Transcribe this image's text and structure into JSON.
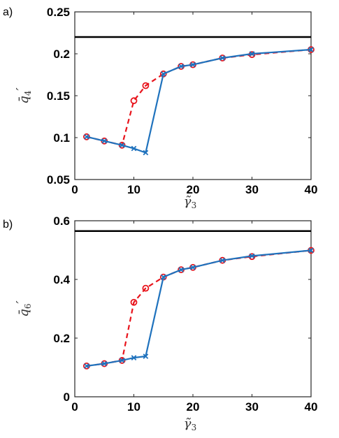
{
  "chart_data": [
    {
      "type": "line",
      "panel_label": "a)",
      "xlabel": "γ̃",
      "xlabel_sub": "3",
      "ylabel": "q̄",
      "ylabel_sub": "4",
      "ylabel_prime": "′",
      "xlim": [
        0,
        40
      ],
      "ylim": [
        0.05,
        0.25
      ],
      "xticks": [
        0,
        10,
        20,
        30,
        40
      ],
      "xtick_labels": [
        "0",
        "10",
        "20",
        "30",
        "40"
      ],
      "yticks": [
        0.05,
        0.1,
        0.15,
        0.2,
        0.25
      ],
      "ytick_labels": [
        "0.05",
        "0.1",
        "0.15",
        "0.2",
        "0.25"
      ],
      "grid": false,
      "reference_line": 0.22,
      "series": [
        {
          "color": "#e8141c",
          "style": "dashed",
          "marker": "circle",
          "x": [
            2,
            5,
            8,
            10,
            12,
            15,
            18,
            20,
            25,
            30,
            40
          ],
          "y": [
            0.101,
            0.096,
            0.091,
            0.144,
            0.162,
            0.176,
            0.185,
            0.187,
            0.195,
            0.199,
            0.205
          ]
        },
        {
          "color": "#1f72bd",
          "style": "solid",
          "marker": "cross",
          "x": [
            2,
            5,
            8,
            10,
            12,
            15,
            18,
            20,
            25,
            30,
            40
          ],
          "y": [
            0.101,
            0.096,
            0.091,
            0.087,
            0.082,
            0.176,
            0.185,
            0.187,
            0.195,
            0.2,
            0.205
          ]
        }
      ]
    },
    {
      "type": "line",
      "panel_label": "b)",
      "xlabel": "γ̃",
      "xlabel_sub": "3",
      "ylabel": "q̄",
      "ylabel_sub": "6",
      "ylabel_prime": "′",
      "xlim": [
        0,
        40
      ],
      "ylim": [
        0,
        0.6
      ],
      "xticks": [
        0,
        10,
        20,
        30,
        40
      ],
      "xtick_labels": [
        "0",
        "10",
        "20",
        "30",
        "40"
      ],
      "yticks": [
        0,
        0.2,
        0.4,
        0.6
      ],
      "ytick_labels": [
        "0",
        "0.2",
        "0.4",
        "0.6"
      ],
      "grid": false,
      "reference_line": 0.565,
      "series": [
        {
          "color": "#e8141c",
          "style": "dashed",
          "marker": "circle",
          "x": [
            2,
            5,
            8,
            10,
            12,
            15,
            18,
            20,
            25,
            30,
            40
          ],
          "y": [
            0.105,
            0.113,
            0.124,
            0.322,
            0.37,
            0.408,
            0.433,
            0.441,
            0.465,
            0.478,
            0.499
          ]
        },
        {
          "color": "#1f72bd",
          "style": "solid",
          "marker": "cross",
          "x": [
            2,
            5,
            8,
            10,
            12,
            15,
            18,
            20,
            25,
            30,
            40
          ],
          "y": [
            0.105,
            0.113,
            0.124,
            0.133,
            0.138,
            0.408,
            0.433,
            0.441,
            0.465,
            0.48,
            0.499
          ]
        }
      ]
    }
  ]
}
